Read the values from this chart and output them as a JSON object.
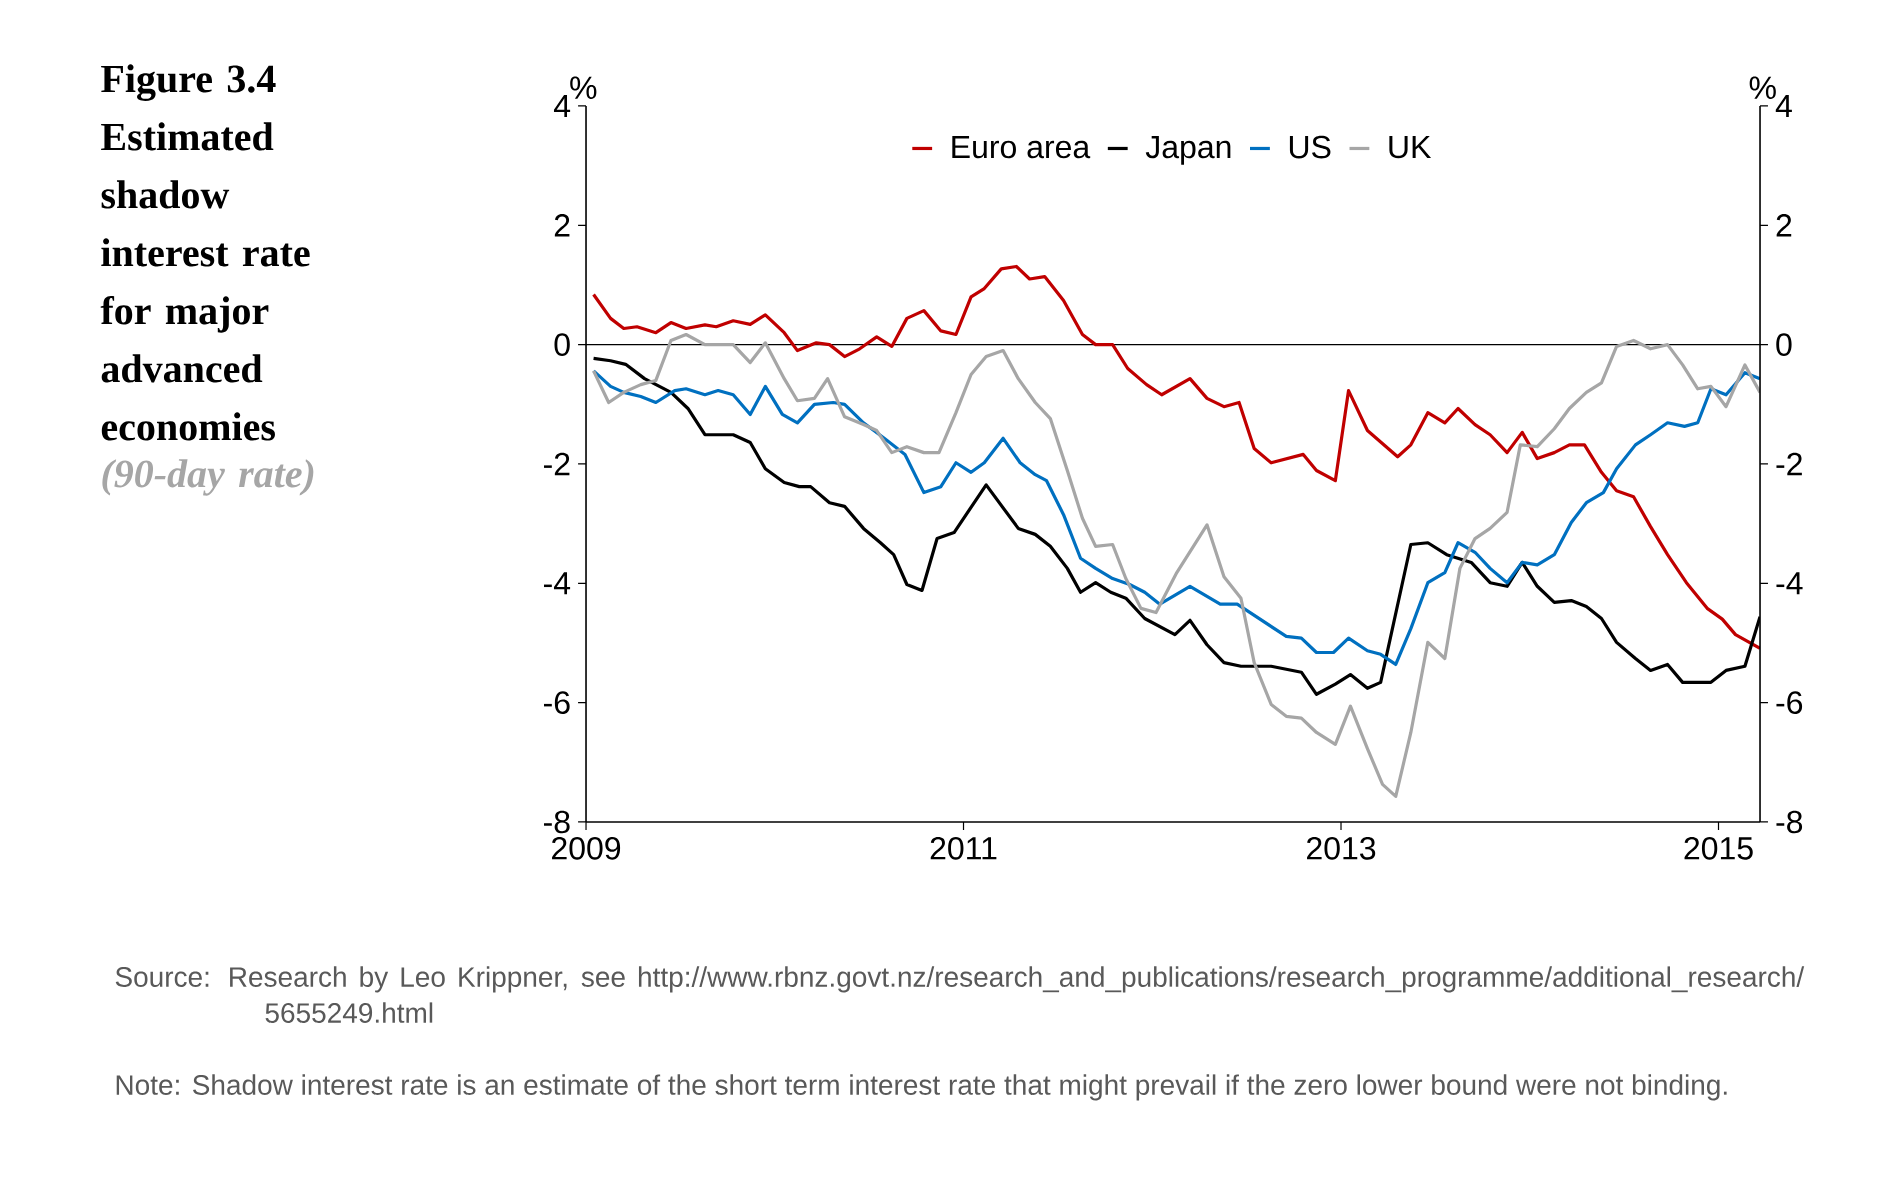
{
  "chart_data": {
    "type": "line",
    "title": "Figure 3.4 Estimated shadow interest rate for major advanced economies",
    "subtitle": "(90-day rate)",
    "ylabel": "%",
    "y2label": "%",
    "xlim": [
      2009,
      2015.22
    ],
    "xticks": [
      2009,
      2011,
      2013,
      2015
    ],
    "ylim": [
      -8,
      4
    ],
    "yticks": [
      -8,
      -6,
      -4,
      -2,
      0,
      2,
      4
    ],
    "y2lim": [
      -8,
      4
    ],
    "y2ticks": [
      -8,
      -6,
      -4,
      -2,
      0,
      2,
      4
    ],
    "legend": "top",
    "ref_lines": [
      {
        "axis": "y",
        "value": 0,
        "color": "#000000"
      }
    ],
    "annotations": [
      "Source:  Research by Leo Krippner, see http://www.rbnz.govt.nz/research_and_publications/research_programme/additional_research/5655249.html",
      "Note:      Shadow interest rate is an estimate of the short term interest rate that might prevail if the zero lower bound were not binding."
    ],
    "series": [
      {
        "name": "Euro area",
        "color": "#c00000",
        "x": [
          2009.04,
          2009.13,
          2009.2,
          2009.27,
          2009.37,
          2009.45,
          2009.53,
          2009.63,
          2009.69,
          2009.78,
          2009.87,
          2009.95,
          2010.05,
          2010.12,
          2010.22,
          2010.29,
          2010.37,
          2010.45,
          2010.54,
          2010.62,
          2010.7,
          2010.79,
          2010.88,
          2010.96,
          2011.04,
          2011.11,
          2011.2,
          2011.28,
          2011.35,
          2011.43,
          2011.53,
          2011.63,
          2011.7,
          2011.79,
          2011.87,
          2011.97,
          2012.05,
          2012.2,
          2012.29,
          2012.38,
          2012.46,
          2012.54,
          2012.63,
          2012.8,
          2012.87,
          2012.97,
          2013.04,
          2013.14,
          2013.3,
          2013.37,
          2013.46,
          2013.55,
          2013.62,
          2013.71,
          2013.79,
          2013.88,
          2013.96,
          2014.04,
          2014.13,
          2014.21,
          2014.29,
          2014.38,
          2014.46,
          2014.55,
          2014.64,
          2014.73,
          2014.83,
          2014.94,
          2015.02,
          2015.09,
          2015.22
        ],
        "values": [
          0.84,
          0.44,
          0.27,
          0.3,
          0.2,
          0.37,
          0.27,
          0.33,
          0.3,
          0.4,
          0.34,
          0.5,
          0.2,
          -0.1,
          0.03,
          0,
          -0.2,
          -0.07,
          0.13,
          -0.03,
          0.44,
          0.57,
          0.23,
          0.17,
          0.8,
          0.94,
          1.27,
          1.31,
          1.1,
          1.14,
          0.74,
          0.17,
          0,
          0,
          -0.4,
          -0.67,
          -0.84,
          -0.57,
          -0.9,
          -1.04,
          -0.97,
          -1.74,
          -1.98,
          -1.84,
          -2.11,
          -2.28,
          -0.77,
          -1.44,
          -1.88,
          -1.68,
          -1.14,
          -1.31,
          -1.07,
          -1.34,
          -1.51,
          -1.81,
          -1.47,
          -1.91,
          -1.81,
          -1.68,
          -1.68,
          -2.14,
          -2.45,
          -2.55,
          -3.05,
          -3.52,
          -3.99,
          -4.42,
          -4.6,
          -4.86,
          -5.09
        ]
      },
      {
        "name": "Japan",
        "color": "#000000",
        "x": [
          2009.04,
          2009.13,
          2009.21,
          2009.31,
          2009.45,
          2009.54,
          2009.63,
          2009.78,
          2009.87,
          2009.95,
          2010.05,
          2010.13,
          2010.19,
          2010.29,
          2010.37,
          2010.47,
          2010.56,
          2010.63,
          2010.7,
          2010.78,
          2010.86,
          2010.95,
          2011.12,
          2011.29,
          2011.38,
          2011.46,
          2011.55,
          2011.62,
          2011.7,
          2011.78,
          2011.86,
          2011.96,
          2012.12,
          2012.2,
          2012.29,
          2012.38,
          2012.47,
          2012.63,
          2012.79,
          2012.87,
          2012.97,
          2013.05,
          2013.14,
          2013.21,
          2013.37,
          2013.46,
          2013.56,
          2013.69,
          2013.79,
          2013.88,
          2013.96,
          2014.04,
          2014.13,
          2014.22,
          2014.3,
          2014.38,
          2014.46,
          2014.56,
          2014.64,
          2014.73,
          2014.81,
          2014.96,
          2015.04,
          2015.14,
          2015.22
        ],
        "values": [
          -0.23,
          -0.27,
          -0.33,
          -0.57,
          -0.8,
          -1.07,
          -1.51,
          -1.51,
          -1.64,
          -2.08,
          -2.31,
          -2.38,
          -2.38,
          -2.65,
          -2.71,
          -3.08,
          -3.32,
          -3.52,
          -4.02,
          -4.12,
          -3.25,
          -3.15,
          -2.35,
          -3.08,
          -3.18,
          -3.38,
          -3.75,
          -4.15,
          -3.99,
          -4.15,
          -4.25,
          -4.59,
          -4.86,
          -4.62,
          -5.03,
          -5.33,
          -5.39,
          -5.39,
          -5.49,
          -5.86,
          -5.69,
          -5.53,
          -5.76,
          -5.66,
          -3.35,
          -3.32,
          -3.52,
          -3.65,
          -3.99,
          -4.05,
          -3.65,
          -4.05,
          -4.32,
          -4.29,
          -4.39,
          -4.59,
          -4.99,
          -5.26,
          -5.46,
          -5.36,
          -5.66,
          -5.66,
          -5.46,
          -5.39,
          -4.56
        ]
      },
      {
        "name": "US",
        "color": "#0070c0",
        "x": [
          2009.04,
          2009.13,
          2009.2,
          2009.29,
          2009.37,
          2009.47,
          2009.53,
          2009.63,
          2009.7,
          2009.78,
          2009.87,
          2009.95,
          2010.04,
          2010.12,
          2010.21,
          2010.31,
          2010.37,
          2010.47,
          2010.58,
          2010.69,
          2010.79,
          2010.88,
          2010.96,
          2011.04,
          2011.11,
          2011.21,
          2011.3,
          2011.38,
          2011.44,
          2011.53,
          2011.62,
          2011.7,
          2011.79,
          2011.88,
          2011.96,
          2012.04,
          2012.2,
          2012.36,
          2012.45,
          2012.71,
          2012.79,
          2012.87,
          2012.96,
          2013.04,
          2013.14,
          2013.21,
          2013.29,
          2013.37,
          2013.46,
          2013.55,
          2013.62,
          2013.71,
          2013.79,
          2013.88,
          2013.96,
          2014.04,
          2014.13,
          2014.22,
          2014.3,
          2014.39,
          2014.46,
          2014.56,
          2014.64,
          2014.73,
          2014.82,
          2014.89,
          2014.96,
          2015.04,
          2015.14,
          2015.22
        ],
        "values": [
          -0.44,
          -0.7,
          -0.8,
          -0.87,
          -0.97,
          -0.77,
          -0.74,
          -0.84,
          -0.77,
          -0.84,
          -1.17,
          -0.7,
          -1.17,
          -1.31,
          -1.0,
          -0.97,
          -1.0,
          -1.31,
          -1.57,
          -1.84,
          -2.48,
          -2.38,
          -1.98,
          -2.14,
          -1.98,
          -1.57,
          -1.98,
          -2.18,
          -2.28,
          -2.85,
          -3.58,
          -3.75,
          -3.92,
          -4.02,
          -4.15,
          -4.35,
          -4.05,
          -4.35,
          -4.35,
          -4.89,
          -4.92,
          -5.16,
          -5.16,
          -4.92,
          -5.13,
          -5.19,
          -5.36,
          -4.76,
          -3.99,
          -3.82,
          -3.32,
          -3.48,
          -3.75,
          -3.99,
          -3.65,
          -3.69,
          -3.52,
          -2.98,
          -2.65,
          -2.48,
          -2.08,
          -1.68,
          -1.51,
          -1.31,
          -1.37,
          -1.31,
          -0.74,
          -0.84,
          -0.47,
          -0.57
        ]
      },
      {
        "name": "UK",
        "color": "#a6a6a6",
        "x": [
          2009.04,
          2009.12,
          2009.2,
          2009.29,
          2009.37,
          2009.45,
          2009.53,
          2009.63,
          2009.78,
          2009.87,
          2009.95,
          2010.05,
          2010.12,
          2010.21,
          2010.28,
          2010.37,
          2010.47,
          2010.54,
          2010.62,
          2010.7,
          2010.79,
          2010.87,
          2010.96,
          2011.04,
          2011.12,
          2011.21,
          2011.29,
          2011.38,
          2011.46,
          2011.55,
          2011.63,
          2011.7,
          2011.79,
          2011.86,
          2011.94,
          2012.02,
          2012.13,
          2012.29,
          2012.38,
          2012.47,
          2012.54,
          2012.63,
          2012.71,
          2012.79,
          2012.87,
          2012.97,
          2013.05,
          2013.14,
          2013.22,
          2013.29,
          2013.37,
          2013.46,
          2013.55,
          2013.63,
          2013.71,
          2013.79,
          2013.88,
          2013.95,
          2014.04,
          2014.13,
          2014.21,
          2014.3,
          2014.38,
          2014.46,
          2014.55,
          2014.64,
          2014.73,
          2014.81,
          2014.89,
          2014.96,
          2015.04,
          2015.14,
          2015.22
        ],
        "values": [
          -0.44,
          -0.97,
          -0.8,
          -0.67,
          -0.6,
          0.07,
          0.17,
          0,
          0,
          -0.3,
          0.03,
          -0.57,
          -0.94,
          -0.9,
          -0.57,
          -1.21,
          -1.34,
          -1.44,
          -1.81,
          -1.71,
          -1.81,
          -1.81,
          -1.14,
          -0.5,
          -0.2,
          -0.1,
          -0.57,
          -0.97,
          -1.24,
          -2.11,
          -2.91,
          -3.38,
          -3.35,
          -3.92,
          -4.42,
          -4.49,
          -3.82,
          -3.02,
          -3.89,
          -4.25,
          -5.33,
          -6.03,
          -6.23,
          -6.26,
          -6.5,
          -6.7,
          -6.06,
          -6.77,
          -7.37,
          -7.57,
          -6.5,
          -4.99,
          -5.26,
          -3.75,
          -3.25,
          -3.08,
          -2.81,
          -1.68,
          -1.71,
          -1.41,
          -1.07,
          -0.8,
          -0.64,
          -0.03,
          0.07,
          -0.07,
          0,
          -0.34,
          -0.74,
          -0.7,
          -1.04,
          -0.34,
          -0.8
        ]
      }
    ]
  }
}
